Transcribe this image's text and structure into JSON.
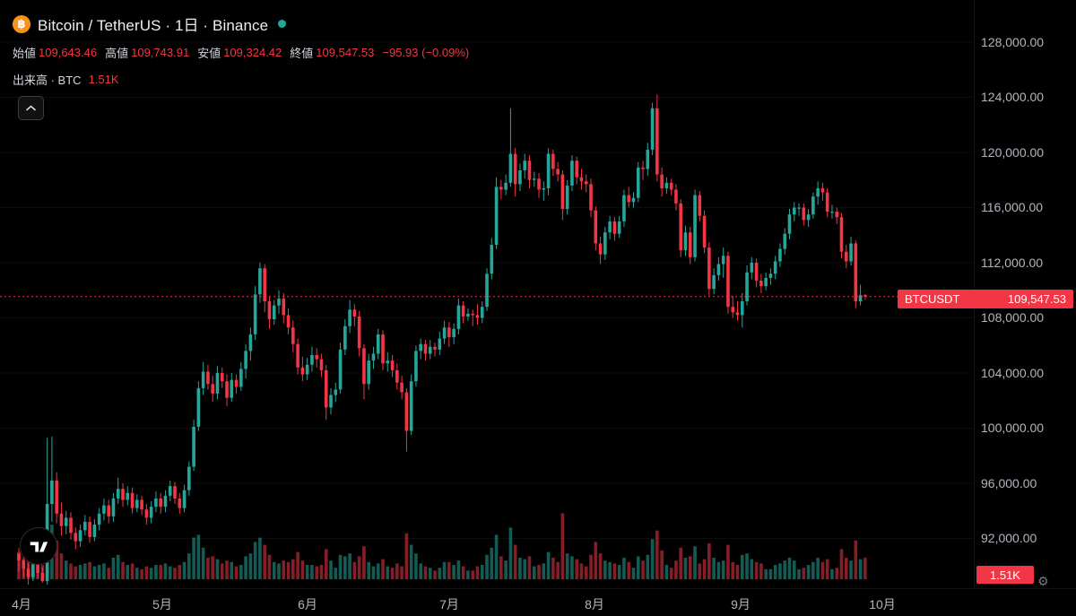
{
  "header": {
    "symbol_title": "Bitcoin / TetherUS · 1日 · Binance",
    "ohlc": {
      "open_label": "始値",
      "open": "109,643.46",
      "high_label": "高値",
      "high": "109,743.91",
      "low_label": "安値",
      "low": "109,324.42",
      "close_label": "終値",
      "close": "109,547.53",
      "change": "−95.93 (−0.09%)"
    },
    "volume_row": {
      "label": "出来高 · BTC",
      "value": "1.51K"
    }
  },
  "colors": {
    "background": "#000000",
    "up": "#26a69a",
    "down": "#f23645",
    "axis_text": "#b2b5be",
    "btc_orange": "#f7931a",
    "status_dot": "#26a69a",
    "badge_red": "#f23645"
  },
  "price_scale": {
    "labels": [
      "128,000.00",
      "124,000.00",
      "120,000.00",
      "116,000.00",
      "112,000.00",
      "108,000.00",
      "104,000.00",
      "100,000.00",
      "96,000.00",
      "92,000.00"
    ]
  },
  "time_scale": {
    "labels": [
      "4月",
      "5月",
      "6月",
      "7月",
      "8月",
      "9月",
      "10月"
    ]
  },
  "price_label_badge": {
    "symbol": "BTCUSDT",
    "price": "109,547.53"
  },
  "volume_badge": {
    "value": "1.51K"
  },
  "chart_data": {
    "type": "candlestick",
    "symbol": "BTCUSDT",
    "exchange": "Binance",
    "interval": "1日",
    "prices_unit": "thousands of USDT",
    "volume_unit": "K BTC",
    "current": {
      "open": 109643.46,
      "high": 109743.91,
      "low": 109324.42,
      "close": 109547.53,
      "change": -95.93,
      "change_pct": -0.09,
      "volume_k_btc": 1.51
    },
    "y_axis": {
      "ticks": [
        128000,
        124000,
        120000,
        116000,
        112000,
        108000,
        104000,
        100000,
        96000,
        92000
      ]
    },
    "x_axis": {
      "months": [
        "4月",
        "5月",
        "6月",
        "7月",
        "8月",
        "9月",
        "10月"
      ],
      "month_start_indices": [
        0,
        30,
        61,
        91,
        122,
        153,
        183
      ]
    },
    "candles": [
      [
        90.9,
        91.3,
        89.6,
        90.4,
        1.9
      ],
      [
        90.4,
        90.8,
        89.2,
        89.8,
        1.4
      ],
      [
        89.8,
        90.2,
        88.6,
        89.2,
        1.6
      ],
      [
        89.2,
        90.6,
        88.9,
        90.1,
        1.2
      ],
      [
        90.1,
        90.5,
        89.1,
        89.5,
        0.9
      ],
      [
        89.5,
        89.9,
        88.8,
        88.9,
        1.0
      ],
      [
        88.9,
        99.3,
        88.6,
        94.5,
        4.3
      ],
      [
        94.5,
        99.4,
        93.2,
        96.2,
        3.8
      ],
      [
        96.2,
        96.8,
        93.1,
        93.8,
        2.7
      ],
      [
        93.8,
        94.6,
        92.2,
        92.9,
        1.8
      ],
      [
        92.9,
        94.0,
        92.3,
        93.5,
        1.3
      ],
      [
        93.5,
        93.9,
        91.9,
        92.4,
        1.1
      ],
      [
        92.4,
        92.8,
        91.2,
        91.8,
        0.9
      ],
      [
        91.8,
        93.0,
        91.4,
        92.6,
        1.0
      ],
      [
        92.6,
        93.7,
        92.2,
        93.2,
        1.1
      ],
      [
        93.2,
        93.6,
        91.7,
        92.1,
        1.2
      ],
      [
        92.1,
        93.4,
        91.8,
        93.0,
        0.9
      ],
      [
        93.0,
        94.2,
        92.6,
        93.8,
        1.0
      ],
      [
        93.8,
        94.9,
        93.3,
        94.4,
        1.1
      ],
      [
        94.4,
        94.8,
        93.1,
        93.6,
        0.8
      ],
      [
        93.6,
        95.3,
        93.2,
        94.9,
        1.5
      ],
      [
        94.9,
        96.4,
        94.5,
        95.6,
        1.7
      ],
      [
        95.6,
        96.0,
        94.3,
        94.8,
        1.2
      ],
      [
        94.8,
        95.8,
        94.4,
        95.3,
        1.0
      ],
      [
        95.3,
        95.7,
        93.8,
        94.2,
        1.1
      ],
      [
        94.2,
        95.2,
        93.9,
        94.8,
        0.8
      ],
      [
        94.8,
        95.1,
        93.7,
        94.1,
        0.7
      ],
      [
        94.1,
        94.5,
        93.0,
        93.5,
        0.9
      ],
      [
        93.5,
        94.7,
        93.1,
        94.3,
        0.8
      ],
      [
        94.3,
        95.4,
        93.9,
        94.9,
        1.0
      ],
      [
        94.9,
        95.3,
        93.8,
        94.3,
        1.0
      ],
      [
        94.3,
        95.5,
        93.9,
        95.1,
        1.1
      ],
      [
        95.1,
        96.2,
        94.7,
        95.8,
        0.9
      ],
      [
        95.8,
        96.1,
        94.5,
        94.9,
        0.8
      ],
      [
        94.9,
        95.3,
        93.8,
        94.2,
        1.0
      ],
      [
        94.2,
        95.9,
        93.9,
        95.5,
        1.2
      ],
      [
        95.5,
        97.6,
        95.1,
        97.2,
        1.8
      ],
      [
        97.2,
        100.6,
        96.9,
        100.1,
        2.9
      ],
      [
        100.1,
        103.4,
        99.8,
        102.9,
        3.1
      ],
      [
        102.9,
        104.8,
        102.4,
        104.1,
        2.2
      ],
      [
        104.1,
        104.6,
        102.8,
        103.2,
        1.5
      ],
      [
        103.2,
        103.8,
        101.9,
        102.5,
        1.6
      ],
      [
        102.5,
        104.5,
        102.1,
        104.0,
        1.4
      ],
      [
        104.0,
        104.4,
        102.9,
        103.4,
        1.1
      ],
      [
        103.4,
        103.9,
        101.6,
        102.2,
        1.3
      ],
      [
        102.2,
        104.0,
        101.9,
        103.5,
        1.2
      ],
      [
        103.5,
        103.9,
        102.5,
        103.0,
        0.9
      ],
      [
        103.0,
        104.8,
        102.7,
        104.3,
        1.0
      ],
      [
        104.3,
        106.1,
        103.6,
        105.6,
        1.6
      ],
      [
        105.6,
        107.3,
        104.9,
        106.8,
        1.8
      ],
      [
        106.8,
        110.3,
        106.4,
        109.7,
        2.6
      ],
      [
        109.7,
        112.0,
        109.1,
        111.6,
        2.9
      ],
      [
        111.6,
        111.9,
        108.4,
        109.2,
        2.4
      ],
      [
        109.2,
        109.6,
        107.2,
        107.9,
        1.7
      ],
      [
        107.9,
        109.3,
        107.5,
        108.9,
        1.2
      ],
      [
        108.9,
        110.0,
        108.3,
        109.4,
        1.1
      ],
      [
        109.4,
        109.8,
        107.6,
        108.2,
        1.3
      ],
      [
        108.2,
        108.7,
        106.8,
        107.3,
        1.2
      ],
      [
        107.3,
        107.8,
        105.5,
        106.1,
        1.4
      ],
      [
        106.1,
        106.5,
        103.9,
        104.4,
        1.9
      ],
      [
        104.4,
        105.2,
        103.4,
        103.9,
        1.3
      ],
      [
        103.9,
        105.1,
        103.5,
        104.6,
        1.0
      ],
      [
        104.6,
        105.9,
        104.1,
        105.3,
        1.0
      ],
      [
        105.3,
        105.8,
        104.4,
        105.0,
        0.9
      ],
      [
        105.0,
        105.4,
        103.7,
        104.2,
        1.0
      ],
      [
        104.2,
        104.6,
        100.6,
        101.5,
        2.1
      ],
      [
        101.5,
        102.9,
        101.0,
        102.4,
        1.3
      ],
      [
        102.4,
        103.3,
        101.9,
        102.8,
        0.8
      ],
      [
        102.8,
        106.2,
        102.5,
        105.7,
        1.7
      ],
      [
        105.7,
        107.9,
        105.3,
        107.4,
        1.6
      ],
      [
        107.4,
        109.3,
        106.9,
        108.6,
        1.8
      ],
      [
        108.6,
        109.0,
        107.4,
        108.1,
        1.2
      ],
      [
        108.1,
        108.5,
        105.2,
        105.8,
        1.6
      ],
      [
        105.8,
        106.1,
        102.1,
        103.2,
        2.3
      ],
      [
        103.2,
        105.4,
        102.8,
        104.9,
        1.2
      ],
      [
        104.9,
        105.9,
        104.3,
        105.4,
        0.9
      ],
      [
        105.4,
        107.2,
        105.0,
        106.8,
        1.1
      ],
      [
        106.8,
        107.1,
        104.2,
        104.7,
        1.4
      ],
      [
        104.7,
        105.5,
        104.1,
        104.9,
        0.9
      ],
      [
        104.9,
        105.3,
        103.7,
        104.2,
        0.8
      ],
      [
        104.2,
        104.7,
        102.8,
        103.3,
        1.1
      ],
      [
        103.3,
        103.8,
        102.1,
        102.6,
        0.9
      ],
      [
        102.6,
        102.9,
        98.3,
        99.8,
        3.2
      ],
      [
        99.8,
        103.9,
        99.5,
        103.4,
        2.4
      ],
      [
        103.4,
        106.0,
        103.0,
        105.6,
        1.8
      ],
      [
        105.6,
        106.5,
        105.0,
        106.1,
        1.1
      ],
      [
        106.1,
        106.4,
        104.9,
        105.4,
        0.9
      ],
      [
        105.4,
        106.4,
        105.0,
        105.9,
        0.8
      ],
      [
        105.9,
        106.2,
        105.2,
        105.7,
        0.6
      ],
      [
        105.7,
        107.0,
        105.3,
        106.5,
        0.8
      ],
      [
        106.5,
        107.8,
        106.1,
        107.3,
        1.2
      ],
      [
        107.3,
        107.7,
        105.9,
        106.6,
        1.2
      ],
      [
        106.6,
        107.6,
        106.1,
        107.2,
        1.0
      ],
      [
        107.2,
        109.4,
        106.8,
        108.9,
        1.3
      ],
      [
        108.9,
        109.2,
        107.6,
        108.1,
        0.9
      ],
      [
        108.1,
        108.7,
        107.8,
        108.3,
        0.6
      ],
      [
        108.3,
        108.6,
        107.4,
        108.2,
        0.6
      ],
      [
        108.2,
        109.0,
        107.5,
        108.0,
        0.9
      ],
      [
        108.0,
        109.2,
        107.6,
        108.8,
        1.0
      ],
      [
        108.8,
        111.6,
        108.5,
        111.2,
        1.7
      ],
      [
        111.2,
        113.8,
        110.8,
        113.3,
        2.2
      ],
      [
        113.3,
        118.2,
        113.0,
        117.5,
        3.1
      ],
      [
        117.5,
        118.0,
        116.6,
        117.3,
        1.6
      ],
      [
        117.3,
        118.4,
        116.9,
        117.8,
        1.3
      ],
      [
        117.8,
        123.2,
        117.5,
        119.9,
        3.6
      ],
      [
        119.9,
        120.3,
        116.8,
        117.7,
        2.4
      ],
      [
        117.7,
        119.2,
        117.2,
        118.7,
        1.5
      ],
      [
        118.7,
        119.9,
        118.1,
        119.4,
        1.4
      ],
      [
        119.4,
        119.8,
        117.4,
        118.0,
        1.6
      ],
      [
        118.0,
        118.6,
        117.5,
        118.1,
        0.9
      ],
      [
        118.1,
        118.5,
        116.7,
        117.3,
        1.0
      ],
      [
        117.3,
        117.9,
        116.5,
        117.4,
        1.1
      ],
      [
        117.4,
        120.3,
        116.9,
        119.9,
        1.9
      ],
      [
        119.9,
        120.2,
        118.3,
        118.8,
        1.5
      ],
      [
        118.8,
        119.3,
        117.9,
        118.4,
        1.2
      ],
      [
        118.4,
        118.7,
        115.1,
        115.9,
        4.6
      ],
      [
        115.9,
        118.0,
        115.5,
        117.6,
        1.8
      ],
      [
        117.6,
        119.8,
        117.2,
        119.4,
        1.6
      ],
      [
        119.4,
        119.7,
        117.7,
        118.2,
        1.4
      ],
      [
        118.2,
        118.8,
        117.3,
        117.9,
        1.1
      ],
      [
        117.9,
        118.4,
        117.1,
        117.7,
        0.9
      ],
      [
        117.7,
        118.1,
        115.3,
        115.8,
        1.7
      ],
      [
        115.8,
        116.1,
        112.9,
        113.4,
        2.6
      ],
      [
        113.4,
        113.9,
        111.9,
        112.6,
        1.8
      ],
      [
        112.6,
        114.6,
        112.2,
        114.2,
        1.3
      ],
      [
        114.2,
        115.4,
        113.7,
        115.0,
        1.2
      ],
      [
        115.0,
        115.3,
        113.6,
        114.1,
        1.1
      ],
      [
        114.1,
        115.4,
        113.8,
        115.0,
        1.0
      ],
      [
        115.0,
        117.3,
        114.6,
        116.9,
        1.5
      ],
      [
        116.9,
        117.5,
        116.0,
        116.4,
        1.2
      ],
      [
        116.4,
        117.1,
        116.0,
        116.7,
        0.8
      ],
      [
        116.7,
        119.3,
        116.4,
        118.9,
        1.6
      ],
      [
        118.9,
        119.4,
        118.0,
        118.8,
        1.3
      ],
      [
        118.8,
        120.7,
        118.3,
        120.2,
        1.7
      ],
      [
        120.2,
        123.6,
        119.8,
        123.2,
        2.8
      ],
      [
        123.2,
        124.2,
        117.9,
        118.4,
        3.4
      ],
      [
        118.4,
        118.9,
        116.8,
        117.4,
        2.0
      ],
      [
        117.4,
        118.2,
        117.0,
        117.8,
        1.0
      ],
      [
        117.8,
        118.1,
        116.9,
        117.3,
        0.8
      ],
      [
        117.3,
        117.7,
        115.8,
        116.3,
        1.3
      ],
      [
        116.3,
        116.6,
        112.4,
        112.9,
        2.2
      ],
      [
        112.9,
        114.7,
        112.5,
        114.2,
        1.5
      ],
      [
        114.2,
        114.6,
        111.9,
        112.4,
        1.6
      ],
      [
        112.4,
        117.3,
        112.1,
        116.9,
        2.3
      ],
      [
        116.9,
        117.2,
        115.0,
        115.4,
        1.1
      ],
      [
        115.4,
        115.8,
        112.7,
        113.1,
        1.4
      ],
      [
        113.1,
        113.5,
        109.6,
        110.1,
        2.5
      ],
      [
        110.1,
        111.6,
        109.7,
        111.1,
        1.5
      ],
      [
        111.1,
        112.4,
        110.7,
        111.9,
        1.2
      ],
      [
        111.9,
        113.1,
        110.9,
        112.5,
        1.3
      ],
      [
        112.5,
        112.8,
        108.3,
        108.8,
        2.4
      ],
      [
        108.8,
        109.6,
        108.0,
        108.4,
        1.2
      ],
      [
        108.4,
        109.2,
        107.8,
        108.2,
        1.0
      ],
      [
        108.2,
        109.8,
        107.3,
        109.2,
        1.7
      ],
      [
        109.2,
        111.8,
        108.9,
        111.3,
        1.8
      ],
      [
        111.3,
        112.4,
        110.8,
        112.0,
        1.4
      ],
      [
        112.0,
        112.3,
        110.2,
        110.7,
        1.2
      ],
      [
        110.7,
        111.2,
        109.8,
        110.3,
        1.1
      ],
      [
        110.3,
        111.3,
        110.0,
        110.9,
        0.7
      ],
      [
        110.9,
        111.6,
        110.4,
        111.2,
        0.7
      ],
      [
        111.2,
        112.5,
        110.8,
        112.1,
        1.0
      ],
      [
        112.1,
        113.4,
        111.7,
        113.0,
        1.1
      ],
      [
        113.0,
        114.5,
        112.6,
        114.1,
        1.3
      ],
      [
        114.1,
        115.9,
        113.7,
        115.5,
        1.5
      ],
      [
        115.5,
        116.4,
        115.0,
        116.0,
        1.3
      ],
      [
        116.0,
        116.3,
        115.4,
        116.0,
        0.7
      ],
      [
        116.0,
        116.3,
        114.7,
        115.1,
        0.8
      ],
      [
        115.1,
        115.9,
        114.6,
        115.5,
        1.0
      ],
      [
        115.5,
        117.1,
        115.2,
        116.8,
        1.2
      ],
      [
        116.8,
        117.9,
        116.2,
        117.4,
        1.5
      ],
      [
        117.4,
        117.8,
        116.5,
        117.1,
        1.2
      ],
      [
        117.1,
        117.4,
        115.3,
        115.7,
        1.4
      ],
      [
        115.7,
        116.2,
        115.2,
        115.7,
        0.7
      ],
      [
        115.7,
        116.0,
        114.8,
        115.3,
        0.8
      ],
      [
        115.3,
        115.6,
        112.3,
        112.8,
        2.1
      ],
      [
        112.8,
        113.3,
        111.6,
        112.1,
        1.5
      ],
      [
        112.1,
        113.9,
        111.8,
        113.4,
        1.3
      ],
      [
        113.4,
        113.6,
        108.7,
        109.2,
        2.7
      ],
      [
        109.2,
        110.4,
        108.9,
        109.64,
        1.4
      ],
      [
        109.64346,
        109.74391,
        109.32442,
        109.54753,
        1.51
      ]
    ]
  }
}
